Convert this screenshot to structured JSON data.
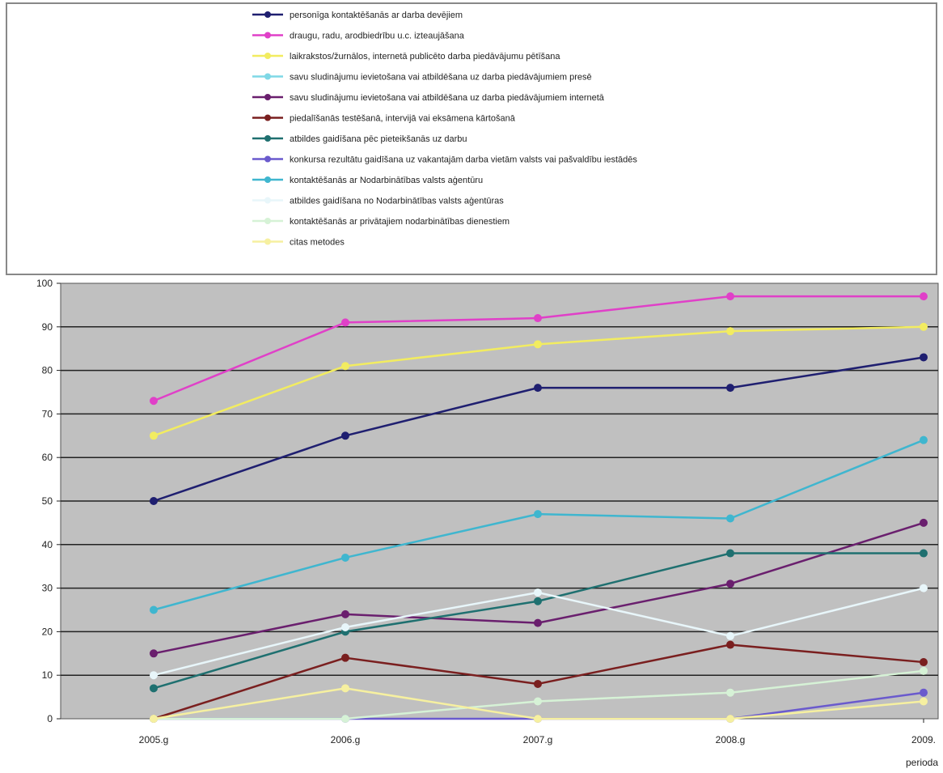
{
  "chart_data": {
    "type": "line",
    "title": "",
    "xlabel": "",
    "ylabel": "",
    "categories": [
      "2005.g",
      "2006.g",
      "2007.g",
      "2008.g",
      "2009."
    ],
    "ylim": [
      0,
      100
    ],
    "yticks": [
      "0",
      "10",
      "20",
      "30",
      "40",
      "50",
      "60",
      "70",
      "80",
      "90",
      "100"
    ],
    "grid": true,
    "legend_position": "top",
    "corner_note": "perioda",
    "plot_background": "#c0c0c0",
    "series": [
      {
        "name": "personīga kontaktēšanās ar darba devējiem",
        "color": "#1f1f70",
        "values": [
          50,
          65,
          76,
          76,
          83
        ]
      },
      {
        "name": "draugu, radu, arodbiedrību u.c. izteaujāšana",
        "color": "#e040c8",
        "values": [
          73,
          91,
          92,
          97,
          97
        ]
      },
      {
        "name": "laikrakstos/žurnālos, internetā publicēto darba piedāvājumu pētīšana",
        "color": "#f2ec60",
        "values": [
          65,
          81,
          86,
          89,
          90
        ]
      },
      {
        "name": "savu sludinājumu ievietošana vai atbildēšana uz darba piedāvājumiem presē",
        "color": "#7fd8e6",
        "values": [
          null,
          null,
          null,
          null,
          null
        ]
      },
      {
        "name": "savu sludinājumu ievietošana vai atbildēšana uz darba piedāvājumiem internetā",
        "color": "#6a1f6e",
        "values": [
          15,
          24,
          22,
          31,
          45
        ]
      },
      {
        "name": "piedalīšanās testēšanā, intervijā vai eksāmena kārtošanā",
        "color": "#7a1f1f",
        "values": [
          0,
          14,
          8,
          17,
          13
        ]
      },
      {
        "name": "atbildes gaidīšana pēc pieteikšanās uz darbu",
        "color": "#1f7070",
        "values": [
          7,
          20,
          27,
          38,
          38
        ]
      },
      {
        "name": "konkursa rezultātu gaidīšana uz vakantajām darba vietām valsts vai pašvaldību iestādēs",
        "color": "#6a5acd",
        "values": [
          0,
          0,
          0,
          0,
          6
        ]
      },
      {
        "name": "kontaktēšanās ar Nodarbinātības valsts aģentūru",
        "color": "#3fb6cf",
        "values": [
          25,
          37,
          47,
          46,
          64
        ]
      },
      {
        "name": "atbildes gaidīšana no Nodarbinātības valsts aģentūras",
        "color": "#e8f6fa",
        "values": [
          10,
          21,
          29,
          19,
          30
        ]
      },
      {
        "name": "kontaktēšanās ar privātajiem nodarbinātības dienestiem",
        "color": "#d6f2d6",
        "values": [
          0,
          0,
          4,
          6,
          11
        ]
      },
      {
        "name": "citas metodes",
        "color": "#f6f0a0",
        "values": [
          0,
          7,
          0,
          0,
          4
        ]
      }
    ]
  }
}
